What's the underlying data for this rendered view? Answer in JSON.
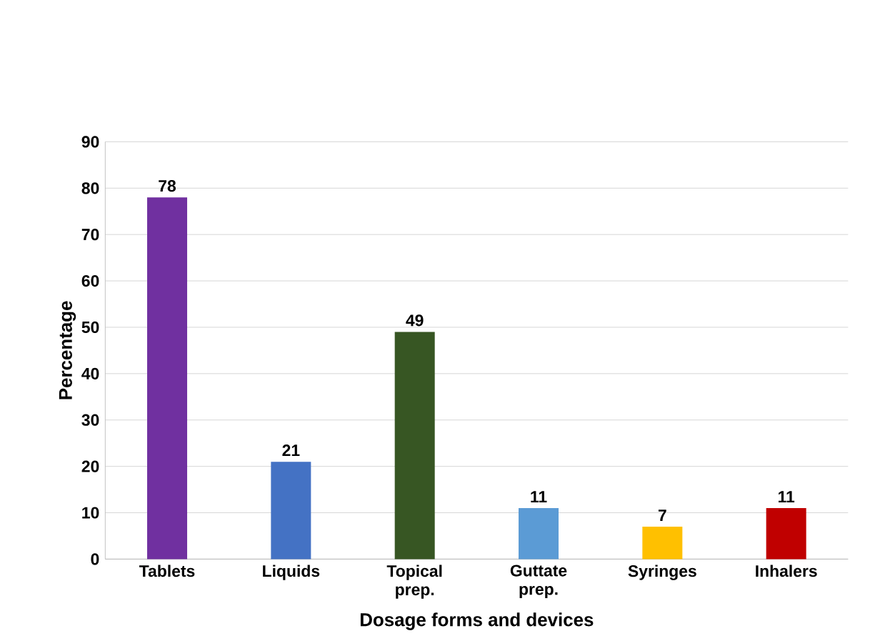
{
  "chart_data": {
    "type": "bar",
    "xlabel": "Dosage forms and devices",
    "ylabel": "Percentage",
    "categories": [
      "Tablets",
      "Liquids",
      "Topical prep.",
      "Guttate prep.",
      "Syringes",
      "Inhalers"
    ],
    "values": [
      78,
      21,
      49,
      11,
      7,
      11
    ],
    "colors": [
      "#7030a0",
      "#4472c4",
      "#375623",
      "#5b9bd5",
      "#ffc000",
      "#c00000"
    ],
    "ylim": [
      0,
      90
    ],
    "yticks": [
      0,
      10,
      20,
      30,
      40,
      50,
      60,
      70,
      80,
      90
    ],
    "grid": "y",
    "data_labels": true
  }
}
